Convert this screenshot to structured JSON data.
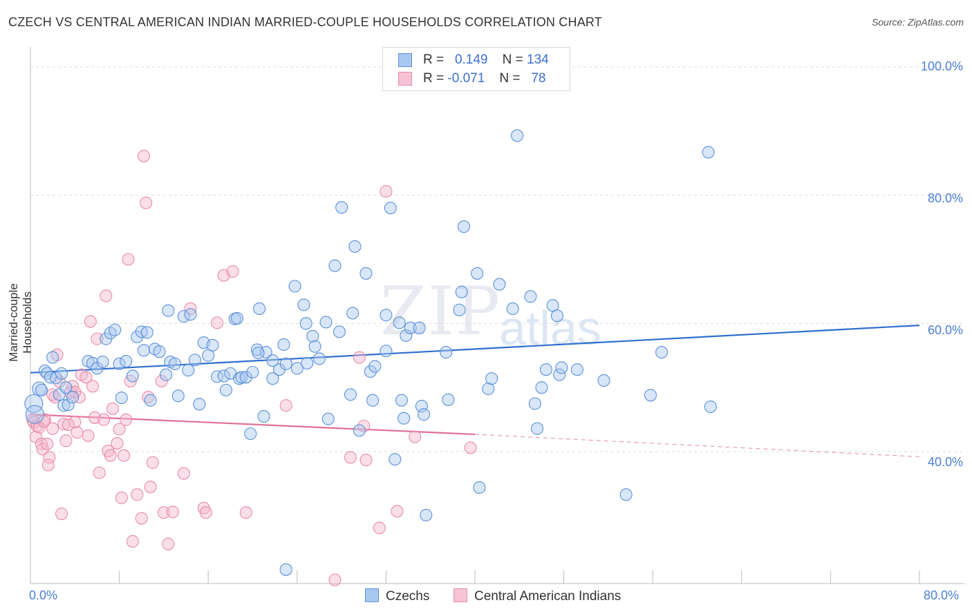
{
  "header": {
    "title": "CZECH VS CENTRAL AMERICAN INDIAN MARRIED-COUPLE HOUSEHOLDS CORRELATION CHART",
    "source": "Source: ZipAtlas.com"
  },
  "watermark": {
    "zip": "ZIP",
    "atlas": "atlas"
  },
  "legend": {
    "rows": [
      {
        "r_label": "R =",
        "r_value": "0.149",
        "n_label": "N =",
        "n_value": "134"
      },
      {
        "r_label": "R =",
        "r_value": "-0.071",
        "n_label": "N =",
        "n_value": "78"
      }
    ]
  },
  "bottom_legend": {
    "series1": "Czechs",
    "series2": "Central American Indians"
  },
  "colors": {
    "czech_fill": "#a9c8f0",
    "czech_stroke": "#5b8fd9",
    "czech_line": "#2f6fce",
    "cai_fill": "#f5b8cc",
    "cai_stroke": "#e88aa8",
    "cai_line": "#e0709a",
    "tick_text": "#4a7fd4"
  },
  "chart_data": {
    "type": "scatter",
    "title": "CZECH VS CENTRAL AMERICAN INDIAN MARRIED-COUPLE HOUSEHOLDS CORRELATION CHART",
    "xlabel": "",
    "ylabel": "Married-couple Households",
    "xlim": [
      0,
      80
    ],
    "ylim": [
      20,
      100
    ],
    "x_tick_labels": [
      "0.0%",
      "80.0%"
    ],
    "y_tick_labels": [
      "100.0%",
      "80.0%",
      "60.0%",
      "40.0%"
    ],
    "y_ticks": [
      100,
      80,
      60,
      40
    ],
    "grid": true,
    "legend_position": "top-center",
    "series": [
      {
        "name": "Czechs",
        "R": 0.149,
        "N": 134,
        "trend": {
          "x": [
            0,
            80
          ],
          "y": [
            52.3,
            59.7
          ]
        },
        "points": [
          [
            0.3,
            47.5
          ],
          [
            0.4,
            45.8
          ],
          [
            0.8,
            49.8
          ],
          [
            1.0,
            49.6
          ],
          [
            1.3,
            52.6
          ],
          [
            1.5,
            52.2
          ],
          [
            1.8,
            51.6
          ],
          [
            2.0,
            54.7
          ],
          [
            2.3,
            51.5
          ],
          [
            2.6,
            48.9
          ],
          [
            2.8,
            52.2
          ],
          [
            3.0,
            47.2
          ],
          [
            3.2,
            50.0
          ],
          [
            3.4,
            47.3
          ],
          [
            3.8,
            48.5
          ],
          [
            5.2,
            54.1
          ],
          [
            5.6,
            53.8
          ],
          [
            6.0,
            53.0
          ],
          [
            6.5,
            54.0
          ],
          [
            6.8,
            57.6
          ],
          [
            7.2,
            58.5
          ],
          [
            7.6,
            59.0
          ],
          [
            8.0,
            53.7
          ],
          [
            8.2,
            48.4
          ],
          [
            8.6,
            54.1
          ],
          [
            9.2,
            51.8
          ],
          [
            9.6,
            57.9
          ],
          [
            10.0,
            58.7
          ],
          [
            10.2,
            55.8
          ],
          [
            10.5,
            58.6
          ],
          [
            10.8,
            48.0
          ],
          [
            11.2,
            56.0
          ],
          [
            11.6,
            55.6
          ],
          [
            12.2,
            52.0
          ],
          [
            12.4,
            62.0
          ],
          [
            12.6,
            54.0
          ],
          [
            13.0,
            53.7
          ],
          [
            13.3,
            48.7
          ],
          [
            13.8,
            61.1
          ],
          [
            14.2,
            52.7
          ],
          [
            14.4,
            61.4
          ],
          [
            14.8,
            54.3
          ],
          [
            15.2,
            47.4
          ],
          [
            15.6,
            57.0
          ],
          [
            16.0,
            55.0
          ],
          [
            16.4,
            56.6
          ],
          [
            16.8,
            51.7
          ],
          [
            17.4,
            51.8
          ],
          [
            17.6,
            49.6
          ],
          [
            18.0,
            52.2
          ],
          [
            18.4,
            60.7
          ],
          [
            18.6,
            60.8
          ],
          [
            18.8,
            51.4
          ],
          [
            19.0,
            51.6
          ],
          [
            19.4,
            51.6
          ],
          [
            19.8,
            42.8
          ],
          [
            20.0,
            52.4
          ],
          [
            20.4,
            55.9
          ],
          [
            20.6,
            62.3
          ],
          [
            21.0,
            45.5
          ],
          [
            21.2,
            55.5
          ],
          [
            21.8,
            54.2
          ],
          [
            21.8,
            51.4
          ],
          [
            22.4,
            52.8
          ],
          [
            22.8,
            56.7
          ],
          [
            23.0,
            53.7
          ],
          [
            23.8,
            65.8
          ],
          [
            24.0,
            53.0
          ],
          [
            24.6,
            62.9
          ],
          [
            24.8,
            60.0
          ],
          [
            24.9,
            53.8
          ],
          [
            25.4,
            58.0
          ],
          [
            25.6,
            56.4
          ],
          [
            26.6,
            60.2
          ],
          [
            26.8,
            45.1
          ],
          [
            27.4,
            69.0
          ],
          [
            27.8,
            58.7
          ],
          [
            28.0,
            78.1
          ],
          [
            28.8,
            48.9
          ],
          [
            29.0,
            61.6
          ],
          [
            29.2,
            72.0
          ],
          [
            29.6,
            43.3
          ],
          [
            30.2,
            67.8
          ],
          [
            30.6,
            52.5
          ],
          [
            30.8,
            48.0
          ],
          [
            31.0,
            53.3
          ],
          [
            32.0,
            55.7
          ],
          [
            32.0,
            61.3
          ],
          [
            32.4,
            78.0
          ],
          [
            32.8,
            38.8
          ],
          [
            33.2,
            60.1
          ],
          [
            33.4,
            48.0
          ],
          [
            33.6,
            45.2
          ],
          [
            33.8,
            58.1
          ],
          [
            34.2,
            59.3
          ],
          [
            35.2,
            47.1
          ],
          [
            35.4,
            45.8
          ],
          [
            35.6,
            30.1
          ],
          [
            37.4,
            55.5
          ],
          [
            37.6,
            48.1
          ],
          [
            38.6,
            62.1
          ],
          [
            38.8,
            64.9
          ],
          [
            39.0,
            75.1
          ],
          [
            40.2,
            67.8
          ],
          [
            40.4,
            34.4
          ],
          [
            41.2,
            49.8
          ],
          [
            42.2,
            66.1
          ],
          [
            43.4,
            62.3
          ],
          [
            43.8,
            89.3
          ],
          [
            45.0,
            64.2
          ],
          [
            45.4,
            47.5
          ],
          [
            45.6,
            43.6
          ],
          [
            46.0,
            50.0
          ],
          [
            46.4,
            52.8
          ],
          [
            47.0,
            62.8
          ],
          [
            47.4,
            61.2
          ],
          [
            47.6,
            52.0
          ],
          [
            47.8,
            53.1
          ],
          [
            49.2,
            52.8
          ],
          [
            51.6,
            51.1
          ],
          [
            53.6,
            33.3
          ],
          [
            55.8,
            48.8
          ],
          [
            56.8,
            55.5
          ],
          [
            61.0,
            86.7
          ],
          [
            61.2,
            47.0
          ],
          [
            23.0,
            21.6
          ],
          [
            26.0,
            54.5
          ],
          [
            35.0,
            59.3
          ],
          [
            41.5,
            51.4
          ],
          [
            20.5,
            55.4
          ]
        ]
      },
      {
        "name": "Central American Indians",
        "R": -0.071,
        "N": 78,
        "trend": {
          "x": [
            0,
            40
          ],
          "y": [
            45.8,
            42.7
          ],
          "dashed_to": {
            "x": 80,
            "y": 39.2
          }
        },
        "points": [
          [
            0.2,
            45.0
          ],
          [
            0.3,
            44.6
          ],
          [
            0.5,
            42.3
          ],
          [
            0.6,
            44.0
          ],
          [
            0.8,
            43.8
          ],
          [
            1.0,
            41.2
          ],
          [
            1.1,
            40.4
          ],
          [
            1.3,
            45.0
          ],
          [
            1.5,
            41.2
          ],
          [
            1.7,
            39.1
          ],
          [
            2.0,
            43.6
          ],
          [
            2.2,
            48.5
          ],
          [
            2.4,
            55.1
          ],
          [
            2.6,
            50.9
          ],
          [
            2.8,
            30.3
          ],
          [
            3.0,
            44.3
          ],
          [
            3.2,
            41.7
          ],
          [
            3.6,
            49.3
          ],
          [
            3.8,
            50.2
          ],
          [
            4.0,
            44.6
          ],
          [
            4.2,
            43.0
          ],
          [
            4.4,
            48.5
          ],
          [
            4.6,
            52.0
          ],
          [
            5.0,
            51.6
          ],
          [
            5.2,
            42.5
          ],
          [
            5.4,
            60.3
          ],
          [
            5.6,
            50.2
          ],
          [
            5.8,
            45.3
          ],
          [
            6.0,
            57.6
          ],
          [
            6.2,
            36.7
          ],
          [
            6.6,
            45.0
          ],
          [
            6.8,
            64.3
          ],
          [
            7.0,
            40.1
          ],
          [
            7.2,
            39.4
          ],
          [
            7.4,
            46.7
          ],
          [
            7.8,
            41.3
          ],
          [
            8.0,
            43.5
          ],
          [
            8.2,
            32.8
          ],
          [
            8.4,
            39.4
          ],
          [
            8.6,
            45.0
          ],
          [
            8.8,
            70.0
          ],
          [
            9.0,
            51.0
          ],
          [
            9.2,
            26.0
          ],
          [
            9.6,
            33.3
          ],
          [
            10.0,
            29.6
          ],
          [
            10.2,
            86.1
          ],
          [
            10.4,
            78.8
          ],
          [
            10.6,
            48.5
          ],
          [
            10.8,
            34.5
          ],
          [
            11.0,
            38.3
          ],
          [
            11.8,
            51.0
          ],
          [
            12.0,
            30.5
          ],
          [
            12.4,
            25.6
          ],
          [
            12.8,
            30.6
          ],
          [
            13.8,
            36.6
          ],
          [
            14.4,
            62.3
          ],
          [
            15.6,
            31.2
          ],
          [
            15.8,
            30.5
          ],
          [
            16.8,
            60.1
          ],
          [
            17.4,
            67.5
          ],
          [
            18.2,
            68.1
          ],
          [
            19.4,
            30.5
          ],
          [
            23.0,
            47.2
          ],
          [
            27.4,
            20.0
          ],
          [
            28.8,
            39.1
          ],
          [
            29.6,
            54.7
          ],
          [
            30.0,
            44.0
          ],
          [
            30.2,
            38.7
          ],
          [
            31.4,
            28.1
          ],
          [
            32.0,
            80.6
          ],
          [
            33.0,
            30.7
          ],
          [
            34.6,
            42.3
          ],
          [
            39.6,
            40.6
          ],
          [
            1.6,
            37.9
          ],
          [
            4.0,
            49.3
          ],
          [
            2.0,
            48.9
          ],
          [
            1.2,
            44.7
          ],
          [
            3.4,
            44.2
          ]
        ]
      }
    ]
  }
}
